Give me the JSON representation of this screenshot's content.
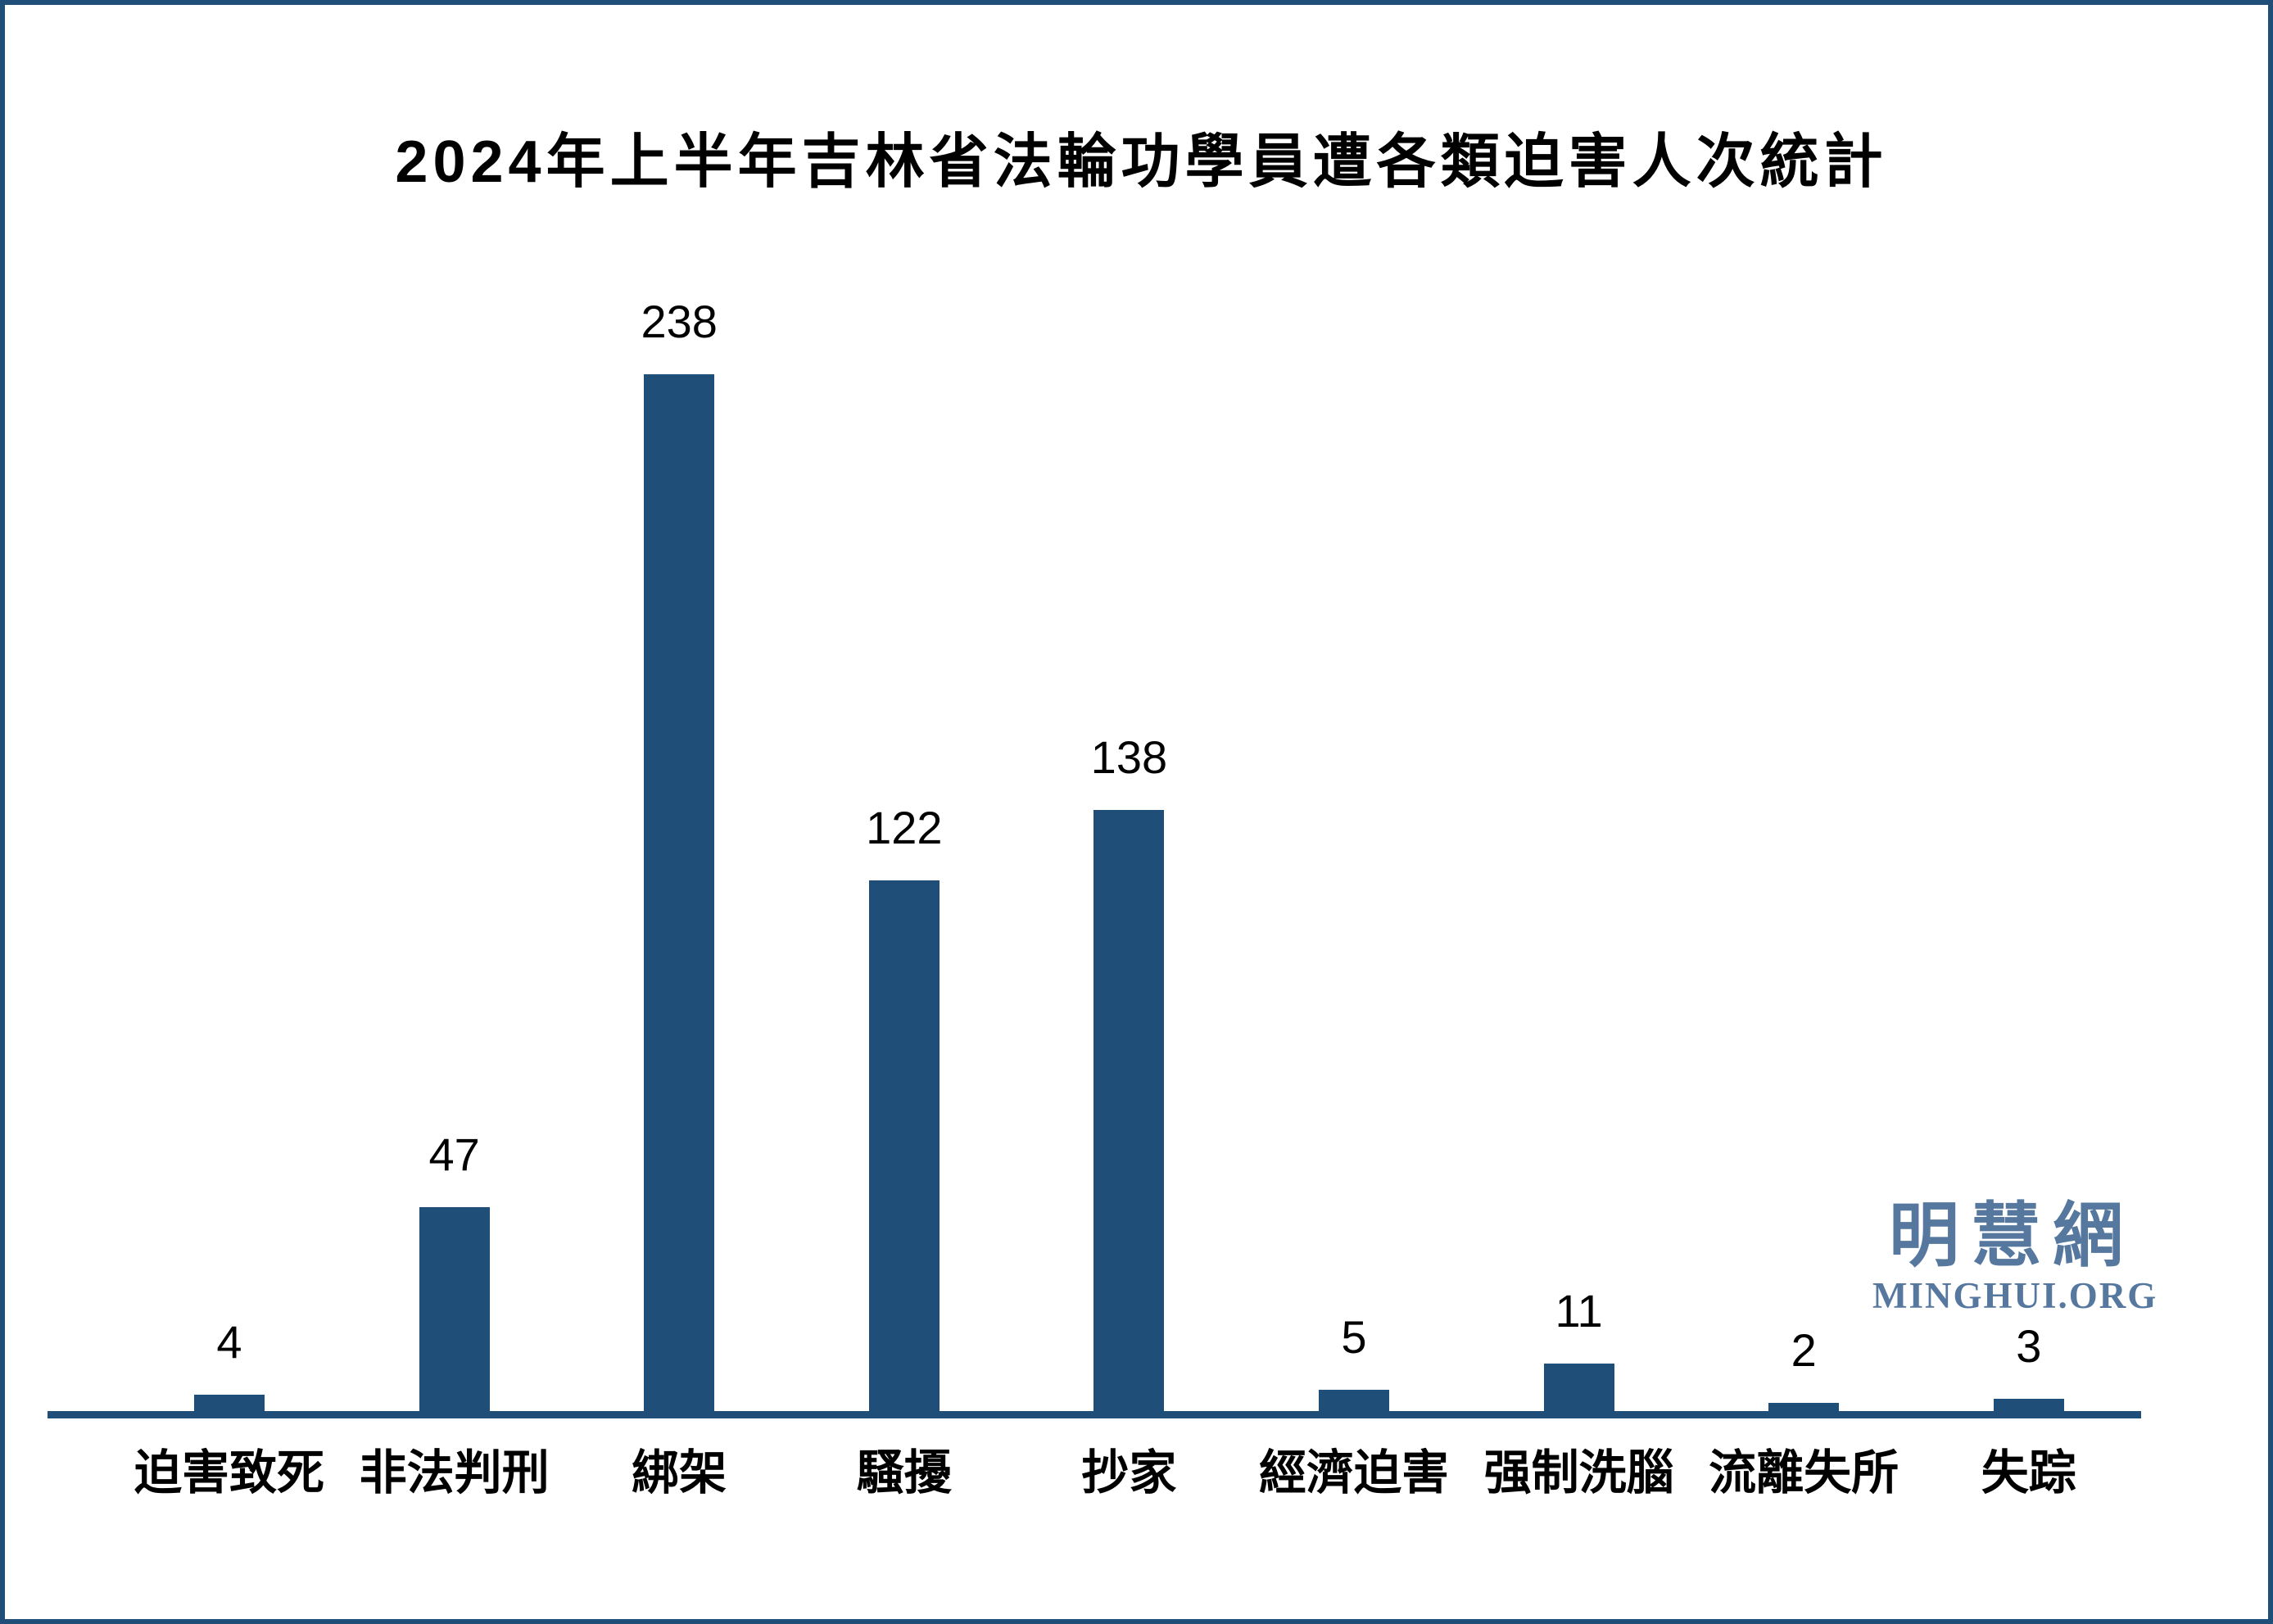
{
  "frame": {
    "border_color": "#1F4E79",
    "background_color": "#FFFFFF"
  },
  "title": "2024年上半年吉林省法輪功學員遭各類迫害人次統計",
  "chart_data": {
    "type": "bar",
    "title": "2024年上半年吉林省法輪功學員遭各類迫害人次統計",
    "categories": [
      "迫害致死",
      "非法判刑",
      "綁架",
      "騷擾",
      "抄家",
      "經濟迫害",
      "强制洗腦",
      "流離失所",
      "失踪"
    ],
    "values": [
      4,
      47,
      238,
      122,
      138,
      5,
      11,
      2,
      3
    ],
    "data_labels": [
      "4",
      "47",
      "238",
      "122",
      "138",
      "5",
      "11",
      "2",
      "3"
    ],
    "xlabel": "",
    "ylabel": "",
    "ylim": [
      0,
      250
    ],
    "grid": false,
    "legend_position": "none",
    "bar_color": "#1F4E79",
    "axis_line_color": "#1F4E79",
    "label_color": "#000000"
  },
  "watermark": {
    "cjk": "明慧網",
    "latin": "MINGHUI.ORG",
    "color": "#56789F"
  }
}
